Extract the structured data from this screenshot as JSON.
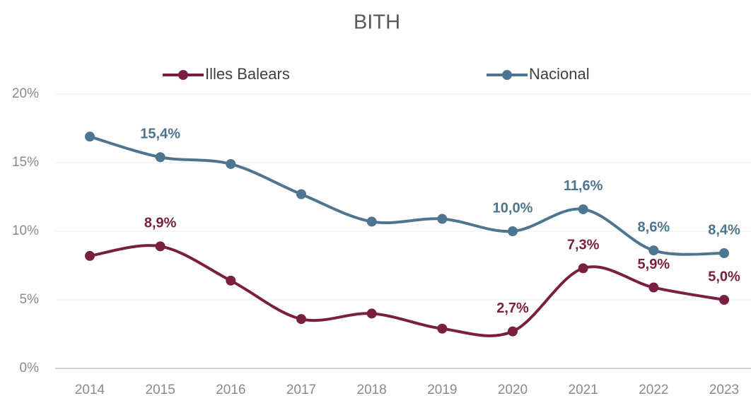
{
  "chart_data": {
    "type": "line",
    "title": "BITH",
    "categories": [
      "2014",
      "2015",
      "2016",
      "2017",
      "2018",
      "2019",
      "2020",
      "2021",
      "2022",
      "2023"
    ],
    "series": [
      {
        "name": "Illes Balears",
        "color": "#7a1f41",
        "values": [
          8.2,
          8.9,
          6.4,
          3.6,
          4.0,
          2.9,
          2.7,
          7.3,
          5.9,
          5.0
        ],
        "value_labels": [
          null,
          "8,9%",
          null,
          null,
          null,
          null,
          "2,7%",
          "7,3%",
          "5,9%",
          "5,0%"
        ]
      },
      {
        "name": "Nacional",
        "color": "#4e7590",
        "values": [
          16.9,
          15.4,
          14.9,
          12.7,
          10.7,
          10.9,
          10.0,
          11.6,
          8.6,
          8.4
        ],
        "value_labels": [
          null,
          "15,4%",
          null,
          null,
          null,
          null,
          "10,0%",
          "11,6%",
          "8,6%",
          "8,4%"
        ]
      }
    ],
    "ylim": [
      0,
      20
    ],
    "yticks": [
      {
        "value": 0,
        "label": "0%"
      },
      {
        "value": 5,
        "label": "5%"
      },
      {
        "value": 10,
        "label": "10%"
      },
      {
        "value": 15,
        "label": "15%"
      },
      {
        "value": 20,
        "label": "20%"
      }
    ],
    "grid": true,
    "legend": "top"
  }
}
